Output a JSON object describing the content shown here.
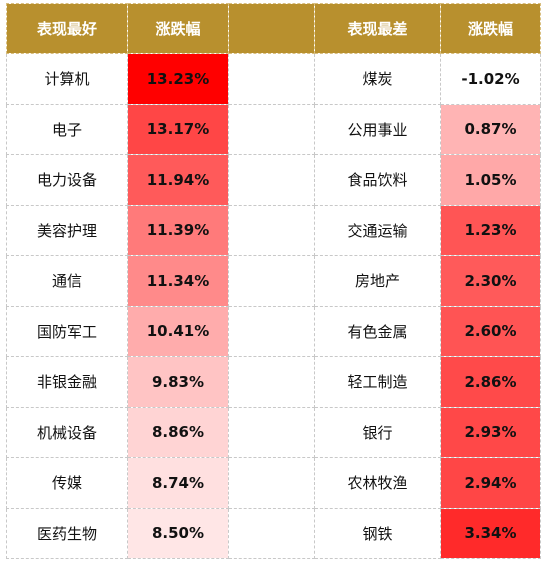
{
  "headers": {
    "best_name": "表现最好",
    "best_change": "涨跌幅",
    "worst_name": "表现最差",
    "worst_change": "涨跌幅"
  },
  "best": [
    {
      "name": "计算机",
      "change": "13.23%",
      "bg": "#ff0000"
    },
    {
      "name": "电子",
      "change": "13.17%",
      "bg": "#ff4646"
    },
    {
      "name": "电力设备",
      "change": "11.94%",
      "bg": "#ff5a5a"
    },
    {
      "name": "美容护理",
      "change": "11.39%",
      "bg": "#ff7a7a"
    },
    {
      "name": "通信",
      "change": "11.34%",
      "bg": "#ff8a8a"
    },
    {
      "name": "国防军工",
      "change": "10.41%",
      "bg": "#ffacac"
    },
    {
      "name": "非银金融",
      "change": "9.83%",
      "bg": "#ffc4c4"
    },
    {
      "name": "机械设备",
      "change": "8.86%",
      "bg": "#ffd4d4"
    },
    {
      "name": "传媒",
      "change": "8.74%",
      "bg": "#ffe0e0"
    },
    {
      "name": "医药生物",
      "change": "8.50%",
      "bg": "#ffe6e6"
    }
  ],
  "worst": [
    {
      "name": "煤炭",
      "change": "-1.02%",
      "bg": "#ffffff"
    },
    {
      "name": "公用事业",
      "change": "0.87%",
      "bg": "#ffb4b4"
    },
    {
      "name": "食品饮料",
      "change": "1.05%",
      "bg": "#ffa8a8"
    },
    {
      "name": "交通运输",
      "change": "1.23%",
      "bg": "#ff5555"
    },
    {
      "name": "房地产",
      "change": "2.30%",
      "bg": "#ff5a5a"
    },
    {
      "name": "有色金属",
      "change": "2.60%",
      "bg": "#ff5454"
    },
    {
      "name": "轻工制造",
      "change": "2.86%",
      "bg": "#ff4a4a"
    },
    {
      "name": "银行",
      "change": "2.93%",
      "bg": "#ff4848"
    },
    {
      "name": "农林牧渔",
      "change": "2.94%",
      "bg": "#ff4646"
    },
    {
      "name": "钢铁",
      "change": "3.34%",
      "bg": "#ff2a2a"
    }
  ],
  "colors": {
    "header_bg": "#b8902e",
    "header_text": "#ffffff",
    "border": "#c8c8c8"
  }
}
